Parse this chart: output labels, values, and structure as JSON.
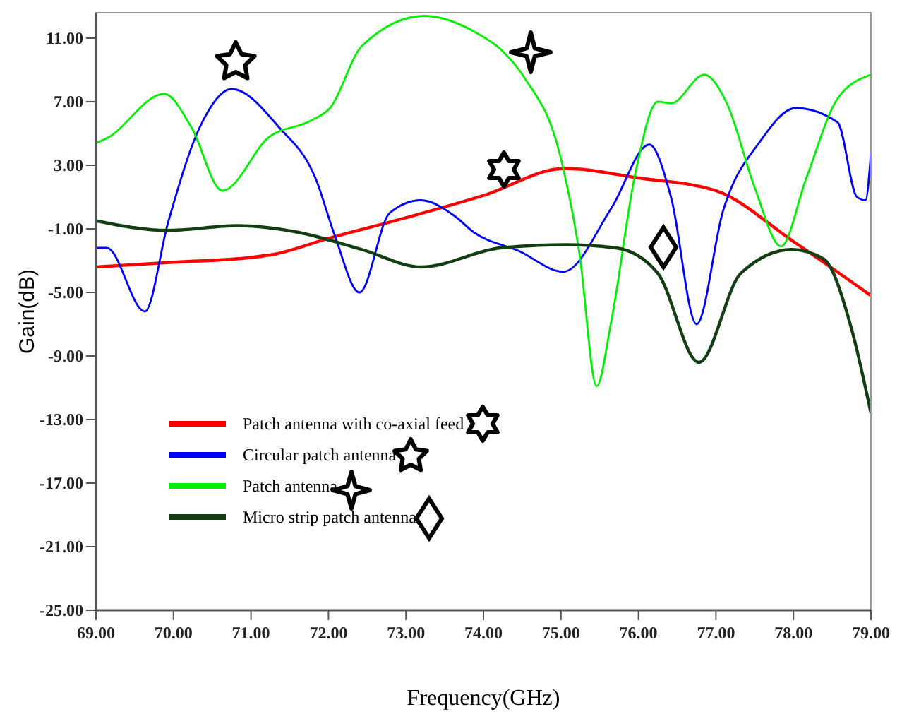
{
  "chart_data": {
    "type": "line",
    "xlabel": "Frequency(GHz)",
    "ylabel": "Gain(dB)",
    "xlim": [
      69,
      79
    ],
    "ylim": [
      -25,
      12.6
    ],
    "xticks": [
      {
        "value": 69,
        "label": "69.00"
      },
      {
        "value": 70,
        "label": "70.00"
      },
      {
        "value": 71,
        "label": "71.00"
      },
      {
        "value": 72,
        "label": "72.00"
      },
      {
        "value": 73,
        "label": "73.00"
      },
      {
        "value": 74,
        "label": "74.00"
      },
      {
        "value": 75,
        "label": "75.00"
      },
      {
        "value": 76,
        "label": "76.00"
      },
      {
        "value": 77,
        "label": "77.00"
      },
      {
        "value": 78,
        "label": "78.00"
      },
      {
        "value": 79,
        "label": "79.00"
      }
    ],
    "yticks": [
      {
        "value": -25,
        "label": "-25.00"
      },
      {
        "value": -21,
        "label": "-21.00"
      },
      {
        "value": -17,
        "label": "-17.00"
      },
      {
        "value": -13,
        "label": "-13.00"
      },
      {
        "value": -9,
        "label": "-9.00"
      },
      {
        "value": -5,
        "label": "-5.00"
      },
      {
        "value": -1,
        "label": "-1.00"
      },
      {
        "value": 3,
        "label": "3.00"
      },
      {
        "value": 7,
        "label": "7.00"
      },
      {
        "value": 11,
        "label": "11.00"
      }
    ],
    "grid": false,
    "legend": "bottom left",
    "marker": "none",
    "line_style": "solid",
    "series": [
      {
        "name": "Patch antenna with co-axial feed",
        "color": "#ff0000",
        "x": [
          69,
          70,
          71,
          71.3,
          72,
          73,
          74,
          75.05,
          76,
          77,
          78,
          79
        ],
        "values": [
          -3.4,
          -3.1,
          -2.8,
          -2.6,
          -1.6,
          -0.3,
          1.1,
          2.8,
          2.2,
          1.4,
          -1.8,
          -5.2
        ]
      },
      {
        "name": "Circular patch antenna",
        "color": "#0000ff",
        "x": [
          69,
          69.14,
          69.63,
          69.93,
          70.34,
          70.75,
          71.36,
          71.84,
          72.08,
          72.4,
          72.79,
          73.19,
          73.63,
          73.87,
          74.46,
          75.03,
          75.65,
          76.14,
          76.42,
          76.75,
          77.09,
          77.57,
          78.03,
          78.57,
          78.82,
          78.93,
          79
        ],
        "values": [
          -2.2,
          -2.2,
          -6.2,
          -0.6,
          5.4,
          7.8,
          5.4,
          2.1,
          -1.4,
          -5,
          0,
          0.8,
          -0.2,
          -1.2,
          -2.4,
          -3.7,
          0.3,
          4.3,
          1,
          -7,
          0.1,
          4.5,
          6.6,
          5.7,
          1,
          0.8,
          3.8
        ]
      },
      {
        "name": "Patch antenna",
        "color": "#00ee00",
        "x": [
          69,
          69.14,
          69.88,
          70.23,
          70.63,
          71.24,
          71.77,
          72.02,
          72.43,
          73.24,
          73.92,
          74.22,
          74.53,
          74.99,
          75.24,
          75.46,
          75.65,
          75.96,
          76.25,
          76.42,
          76.85,
          77.14,
          77.5,
          77.84,
          78.16,
          78.57,
          79
        ],
        "values": [
          4.4,
          4.7,
          7.5,
          5.4,
          1.4,
          4.8,
          5.8,
          6.6,
          10.5,
          12.4,
          11.3,
          10.3,
          8.5,
          3.6,
          -2.6,
          -10.9,
          -6.8,
          2.5,
          7,
          6.9,
          8.7,
          6.9,
          1.6,
          -2.1,
          2.1,
          7.2,
          8.7
        ]
      },
      {
        "name": "Micro strip patch antenna",
        "color": "#133d13",
        "x": [
          69,
          69.93,
          70.82,
          71.59,
          72.43,
          73.2,
          74.22,
          75.06,
          75.71,
          76.25,
          76.78,
          77.32,
          77.98,
          78.39,
          78.75,
          79
        ],
        "values": [
          -0.5,
          -1.1,
          -0.8,
          -1.2,
          -2.3,
          -3.4,
          -2.2,
          -2,
          -2.2,
          -3.8,
          -9.4,
          -3.8,
          -2.3,
          -2.9,
          -7.3,
          -12.6
        ]
      }
    ]
  }
}
